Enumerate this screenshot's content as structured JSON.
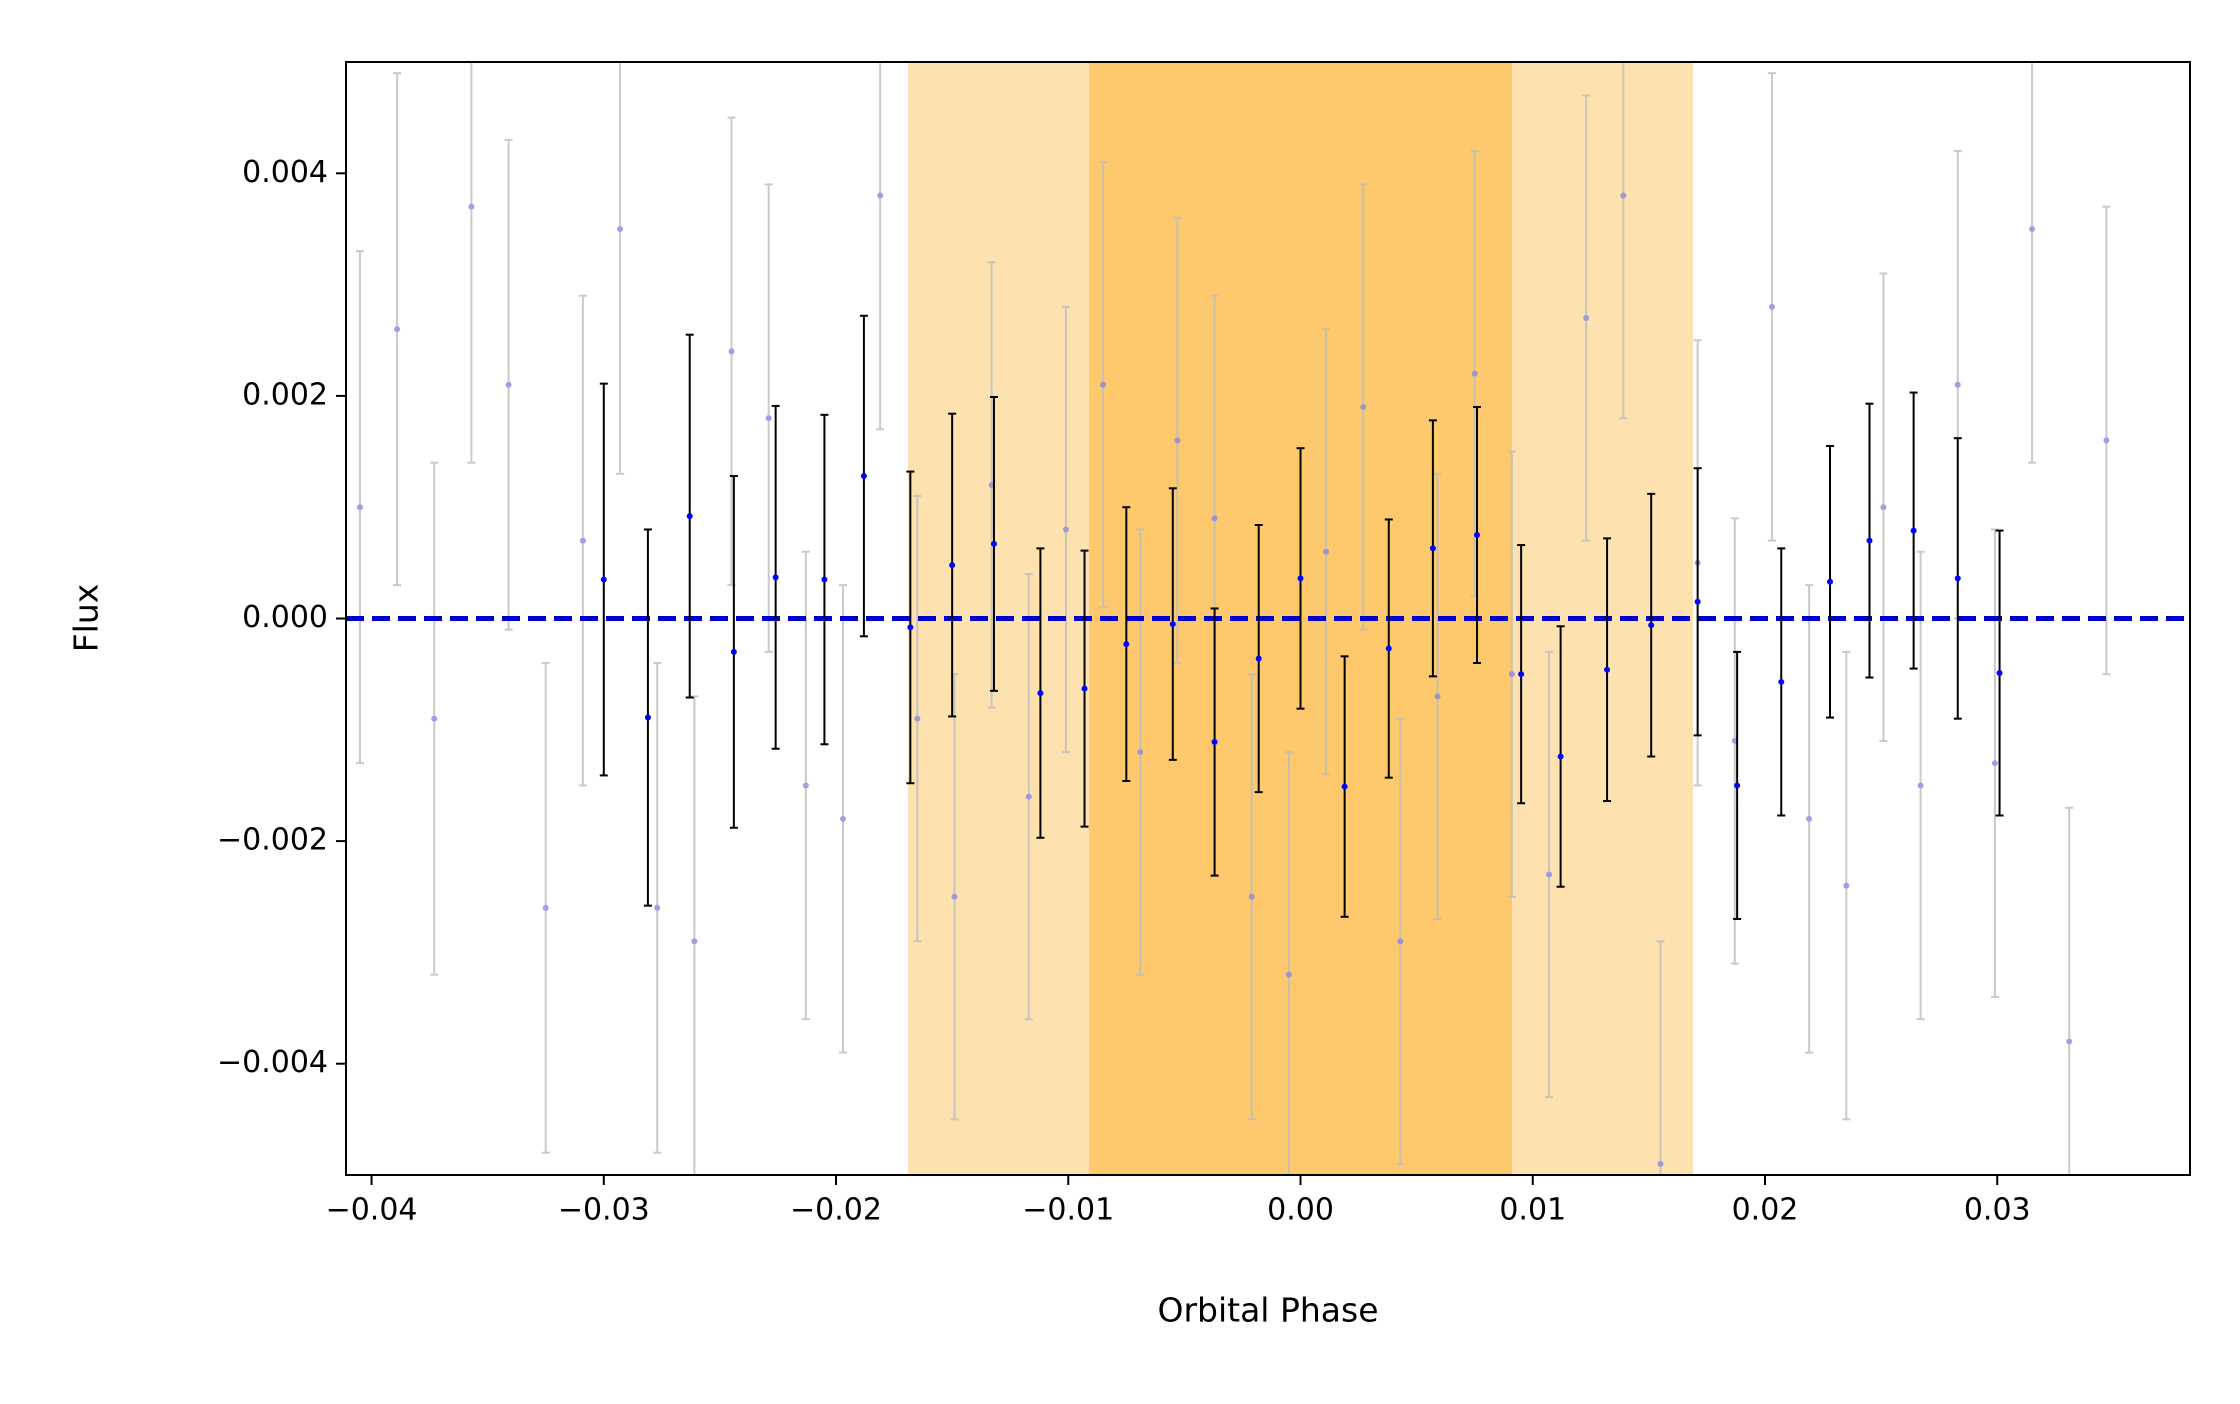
{
  "chart_data": {
    "type": "errorbar",
    "xlabel": "Orbital Phase",
    "ylabel": "Flux",
    "xlim": [
      -0.0411,
      0.0383
    ],
    "ylim": [
      -0.005,
      0.005
    ],
    "xticks": [
      {
        "value": -0.04,
        "label": "−0.04"
      },
      {
        "value": -0.03,
        "label": "−0.03"
      },
      {
        "value": -0.02,
        "label": "−0.02"
      },
      {
        "value": -0.01,
        "label": "−0.01"
      },
      {
        "value": 0,
        "label": "0.00"
      },
      0.01,
      0.02,
      0.03
    ],
    "yticks": [
      {
        "value": -0.004,
        "label": "−0.004"
      },
      {
        "value": -0.002,
        "label": "−0.002"
      },
      {
        "value": 0,
        "label": "0.000"
      },
      0.002,
      0.004
    ],
    "spans": [
      {
        "start": -0.0169,
        "end": 0.0169,
        "color": "#fde2b0"
      },
      {
        "start": -0.0091,
        "end": 0.0091,
        "color": "#fec96c"
      }
    ],
    "hline": {
      "value": 0,
      "color": "#0000cc"
    },
    "series": [
      {
        "color": "#8888e0",
        "ecolor": "#bdbdbd",
        "x": [
          -0.0405,
          -0.0389,
          -0.0373,
          -0.0357,
          -0.0341,
          -0.0325,
          -0.0309,
          -0.0293,
          -0.0277,
          -0.0261,
          -0.0245,
          -0.0229,
          -0.0213,
          -0.0197,
          -0.0181,
          -0.0165,
          -0.0149,
          -0.0133,
          -0.0117,
          -0.0101,
          -0.0085,
          -0.0069,
          -0.0053,
          -0.0037,
          -0.0021,
          -0.0005,
          0.0011,
          0.0027,
          0.0043,
          0.0059,
          0.0075,
          0.0091,
          0.0107,
          0.0123,
          0.0139,
          0.0155,
          0.0171,
          0.0187,
          0.0203,
          0.0219,
          0.0235,
          0.0251,
          0.0267,
          0.0283,
          0.0299,
          0.0315,
          0.0331,
          0.0347
        ],
        "values": [
          0.001,
          0.0026,
          -0.0009,
          0.0037,
          0.0021,
          -0.0026,
          0.0007,
          0.0035,
          -0.0026,
          -0.0029,
          0.0024,
          0.0018,
          -0.0015,
          -0.0018,
          0.0038,
          -0.0009,
          -0.0025,
          0.0012,
          -0.0016,
          0.0008,
          0.0021,
          -0.0012,
          0.0016,
          0.0009,
          -0.0025,
          -0.0032,
          0.0006,
          0.0019,
          -0.0029,
          -0.0007,
          0.0022,
          -0.0005,
          -0.0023,
          0.0027,
          0.0038,
          -0.0049,
          0.0005,
          -0.0011,
          0.0028,
          -0.0018,
          -0.0024,
          0.001,
          -0.0015,
          0.0021,
          -0.0013,
          0.0035,
          -0.0038,
          0.0016
        ],
        "errors": [
          0.0023,
          0.0023,
          0.0023,
          0.0023,
          0.0022,
          0.0022,
          0.0022,
          0.0022,
          0.0022,
          0.0022,
          0.0021,
          0.0021,
          0.0021,
          0.0021,
          0.0021,
          0.002,
          0.002,
          0.002,
          0.002,
          0.002,
          0.002,
          0.002,
          0.002,
          0.002,
          0.002,
          0.002,
          0.002,
          0.002,
          0.002,
          0.002,
          0.002,
          0.002,
          0.002,
          0.002,
          0.002,
          0.002,
          0.002,
          0.002,
          0.0021,
          0.0021,
          0.0021,
          0.0021,
          0.0021,
          0.0021,
          0.0021,
          0.0021,
          0.0021,
          0.0021
        ]
      },
      {
        "color": "#0000ff",
        "ecolor": "#000000",
        "x": [
          -0.03,
          -0.0281,
          -0.0263,
          -0.0244,
          -0.0226,
          -0.0205,
          -0.0188,
          -0.0168,
          -0.015,
          -0.0132,
          -0.0112,
          -0.0093,
          -0.0075,
          -0.0055,
          -0.0037,
          -0.0018,
          0.0,
          0.0019,
          0.0038,
          0.0057,
          0.0076,
          0.0095,
          0.0112,
          0.0132,
          0.0151,
          0.0171,
          0.0188,
          0.0207,
          0.0228,
          0.0245,
          0.0264,
          0.0283,
          0.0301
        ],
        "values": [
          0.00035,
          -0.00089,
          0.00092,
          -0.0003,
          0.00037,
          0.00035,
          0.00128,
          -8e-05,
          0.00048,
          0.00067,
          -0.00067,
          -0.00063,
          -0.00023,
          -5e-05,
          -0.00111,
          -0.00036,
          0.00036,
          -0.00151,
          -0.00027,
          0.00063,
          0.00075,
          -0.0005,
          -0.00124,
          -0.00046,
          -6e-05,
          0.00015,
          -0.0015,
          -0.00057,
          0.00033,
          0.0007,
          0.00079,
          0.00036,
          -0.00049
        ],
        "errors": [
          0.00176,
          0.00169,
          0.00163,
          0.00158,
          0.00154,
          0.00148,
          0.00144,
          0.0014,
          0.00136,
          0.00132,
          0.0013,
          0.00124,
          0.00123,
          0.00122,
          0.0012,
          0.0012,
          0.00117,
          0.00117,
          0.00116,
          0.00115,
          0.00115,
          0.00116,
          0.00117,
          0.00118,
          0.00118,
          0.0012,
          0.0012,
          0.0012,
          0.00122,
          0.00123,
          0.00124,
          0.00126,
          0.00128
        ]
      }
    ]
  }
}
